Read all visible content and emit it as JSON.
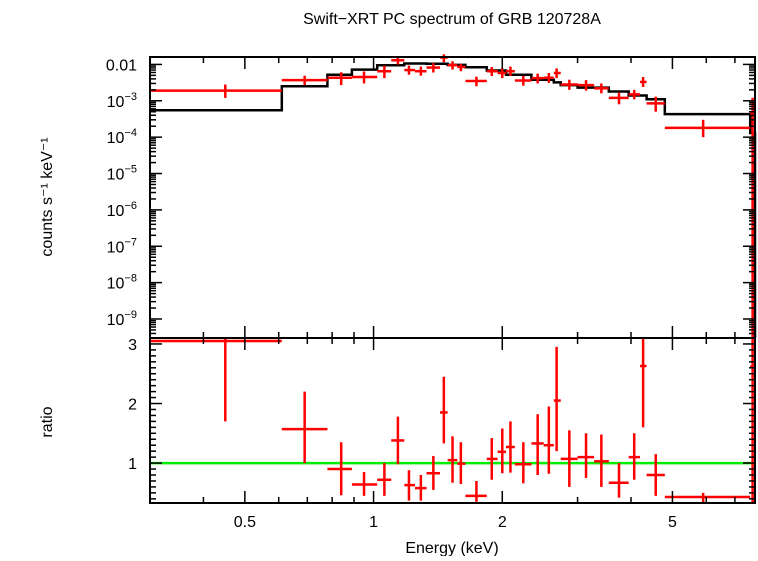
{
  "chart_data": [
    {
      "type": "scatter",
      "panel": "spectrum",
      "title": "Swift−XRT PC spectrum of GRB 120728A",
      "xlabel": "Energy (keV)",
      "ylabel": "counts s⁻¹ keV⁻¹",
      "x_scale": "log",
      "y_scale": "log",
      "xlim": [
        0.3,
        7.8
      ],
      "ylim": [
        3e-10,
        0.016
      ],
      "x_ticks": [
        {
          "value": 0.5,
          "label": "0.5"
        },
        {
          "value": 1,
          "label": "1"
        },
        {
          "value": 2,
          "label": "2"
        },
        {
          "value": 5,
          "label": "5"
        }
      ],
      "y_ticks": [
        {
          "value": 1e-09,
          "base": "10",
          "exp": "−9"
        },
        {
          "value": 1e-08,
          "base": "10",
          "exp": "−8"
        },
        {
          "value": 1e-07,
          "base": "10",
          "exp": "−7"
        },
        {
          "value": 1e-06,
          "base": "10",
          "exp": "−6"
        },
        {
          "value": 1e-05,
          "base": "10",
          "exp": "−5"
        },
        {
          "value": 0.0001,
          "base": "10",
          "exp": "−4"
        },
        {
          "value": 0.001,
          "base": "10",
          "exp": "−3"
        },
        {
          "value": 0.01,
          "base": "0.01",
          "exp": ""
        }
      ],
      "series": [
        {
          "color": "#ff0000",
          "points": [
            {
              "xlo": 0.3,
              "xhi": 0.61,
              "x": 0.45,
              "y": 0.0019,
              "ylo": 0.0012,
              "yhi": 0.0028
            },
            {
              "xlo": 0.61,
              "xhi": 0.78,
              "x": 0.69,
              "y": 0.0037,
              "ylo": 0.0027,
              "yhi": 0.0049
            },
            {
              "xlo": 0.78,
              "xhi": 0.89,
              "x": 0.84,
              "y": 0.0043,
              "ylo": 0.0027,
              "yhi": 0.0061
            },
            {
              "xlo": 0.89,
              "xhi": 1.02,
              "x": 0.95,
              "y": 0.0045,
              "ylo": 0.003,
              "yhi": 0.0064
            },
            {
              "xlo": 1.02,
              "xhi": 1.1,
              "x": 1.06,
              "y": 0.0065,
              "ylo": 0.0042,
              "yhi": 0.0093
            },
            {
              "xlo": 1.1,
              "xhi": 1.18,
              "x": 1.14,
              "y": 0.013,
              "ylo": 0.0099,
              "yhi": 0.016
            },
            {
              "xlo": 1.18,
              "xhi": 1.25,
              "x": 1.21,
              "y": 0.007,
              "ylo": 0.0052,
              "yhi": 0.0093
            },
            {
              "xlo": 1.25,
              "xhi": 1.33,
              "x": 1.29,
              "y": 0.0065,
              "ylo": 0.0049,
              "yhi": 0.0087
            },
            {
              "xlo": 1.33,
              "xhi": 1.43,
              "x": 1.38,
              "y": 0.0082,
              "ylo": 0.006,
              "yhi": 0.0108
            },
            {
              "xlo": 1.43,
              "xhi": 1.49,
              "x": 1.46,
              "y": 0.0155,
              "ylo": 0.0115,
              "yhi": 0.019
            },
            {
              "xlo": 1.49,
              "xhi": 1.57,
              "x": 1.53,
              "y": 0.0095,
              "ylo": 0.0072,
              "yhi": 0.0122
            },
            {
              "xlo": 1.57,
              "xhi": 1.64,
              "x": 1.6,
              "y": 0.0085,
              "ylo": 0.0065,
              "yhi": 0.0105
            },
            {
              "xlo": 1.64,
              "xhi": 1.84,
              "x": 1.74,
              "y": 0.0035,
              "ylo": 0.0025,
              "yhi": 0.0046
            },
            {
              "xlo": 1.84,
              "xhi": 1.95,
              "x": 1.89,
              "y": 0.0065,
              "ylo": 0.0048,
              "yhi": 0.0085
            },
            {
              "xlo": 1.95,
              "xhi": 2.04,
              "x": 2.0,
              "y": 0.0058,
              "ylo": 0.0042,
              "yhi": 0.0078
            },
            {
              "xlo": 2.04,
              "xhi": 2.14,
              "x": 2.09,
              "y": 0.0065,
              "ylo": 0.0048,
              "yhi": 0.0087
            },
            {
              "xlo": 2.14,
              "xhi": 2.34,
              "x": 2.24,
              "y": 0.0036,
              "ylo": 0.0026,
              "yhi": 0.0048
            },
            {
              "xlo": 2.34,
              "xhi": 2.5,
              "x": 2.42,
              "y": 0.0042,
              "ylo": 0.003,
              "yhi": 0.0056
            },
            {
              "xlo": 2.5,
              "xhi": 2.64,
              "x": 2.57,
              "y": 0.0043,
              "ylo": 0.0031,
              "yhi": 0.0058
            },
            {
              "xlo": 2.64,
              "xhi": 2.74,
              "x": 2.68,
              "y": 0.0058,
              "ylo": 0.0042,
              "yhi": 0.0078
            },
            {
              "xlo": 2.74,
              "xhi": 3.0,
              "x": 2.87,
              "y": 0.0028,
              "ylo": 0.002,
              "yhi": 0.0038
            },
            {
              "xlo": 3.0,
              "xhi": 3.28,
              "x": 3.14,
              "y": 0.0027,
              "ylo": 0.0019,
              "yhi": 0.0037
            },
            {
              "xlo": 3.28,
              "xhi": 3.55,
              "x": 3.41,
              "y": 0.0022,
              "ylo": 0.0016,
              "yhi": 0.003
            },
            {
              "xlo": 3.55,
              "xhi": 3.95,
              "x": 3.75,
              "y": 0.0012,
              "ylo": 0.0008,
              "yhi": 0.0017
            },
            {
              "xlo": 3.95,
              "xhi": 4.2,
              "x": 4.07,
              "y": 0.0015,
              "ylo": 0.0011,
              "yhi": 0.002
            },
            {
              "xlo": 4.2,
              "xhi": 4.35,
              "x": 4.27,
              "y": 0.0033,
              "ylo": 0.0024,
              "yhi": 0.0045
            },
            {
              "xlo": 4.35,
              "xhi": 4.8,
              "x": 4.57,
              "y": 0.00085,
              "ylo": 0.0005,
              "yhi": 0.0013
            },
            {
              "xlo": 4.8,
              "xhi": 7.6,
              "x": 5.9,
              "y": 0.00018,
              "ylo": 0.0001,
              "yhi": 0.0003
            },
            {
              "xlo": 7.6,
              "xhi": 7.8,
              "x": 7.7,
              "y": 0.00045,
              "ylo": 3e-10,
              "yhi": 0.0012
            }
          ]
        }
      ],
      "model": {
        "color": "#000000",
        "bins": [
          {
            "xlo": 0.3,
            "xhi": 0.61,
            "y": 0.00055
          },
          {
            "xlo": 0.61,
            "xhi": 0.78,
            "y": 0.0025
          },
          {
            "xlo": 0.78,
            "xhi": 0.89,
            "y": 0.0052
          },
          {
            "xlo": 0.89,
            "xhi": 1.02,
            "y": 0.0072
          },
          {
            "xlo": 1.02,
            "xhi": 1.18,
            "y": 0.0095
          },
          {
            "xlo": 1.18,
            "xhi": 1.33,
            "y": 0.0106
          },
          {
            "xlo": 1.33,
            "xhi": 1.49,
            "y": 0.0104
          },
          {
            "xlo": 1.49,
            "xhi": 1.64,
            "y": 0.0097
          },
          {
            "xlo": 1.64,
            "xhi": 1.84,
            "y": 0.0084
          },
          {
            "xlo": 1.84,
            "xhi": 2.04,
            "y": 0.0068
          },
          {
            "xlo": 2.04,
            "xhi": 2.34,
            "y": 0.0052
          },
          {
            "xlo": 2.34,
            "xhi": 2.64,
            "y": 0.0038
          },
          {
            "xlo": 2.64,
            "xhi": 2.74,
            "y": 0.0032
          },
          {
            "xlo": 2.74,
            "xhi": 3.0,
            "y": 0.0027
          },
          {
            "xlo": 3.0,
            "xhi": 3.55,
            "y": 0.0023
          },
          {
            "xlo": 3.55,
            "xhi": 3.95,
            "y": 0.0018
          },
          {
            "xlo": 3.95,
            "xhi": 4.35,
            "y": 0.0014
          },
          {
            "xlo": 4.35,
            "xhi": 4.8,
            "y": 0.0011
          },
          {
            "xlo": 4.8,
            "xhi": 7.6,
            "y": 0.00043
          },
          {
            "xlo": 7.6,
            "xhi": 7.8,
            "y": 0.00013
          }
        ]
      }
    },
    {
      "type": "scatter",
      "panel": "ratio",
      "xlabel": "Energy (keV)",
      "ylabel": "ratio",
      "x_scale": "log",
      "xlim": [
        0.3,
        7.8
      ],
      "ylim": [
        0.33,
        3.1
      ],
      "y_ticks": [
        {
          "value": 1,
          "label": "1"
        },
        {
          "value": 2,
          "label": "2"
        },
        {
          "value": 3,
          "label": "3"
        }
      ],
      "reference_line": {
        "y": 1,
        "color": "#00ee00"
      },
      "series": [
        {
          "color": "#ff0000",
          "points": [
            {
              "xlo": 0.3,
              "xhi": 0.61,
              "x": 0.45,
              "y": 3.05,
              "ylo": 1.7,
              "yhi": 3.1
            },
            {
              "xlo": 0.61,
              "xhi": 0.78,
              "x": 0.69,
              "y": 1.57,
              "ylo": 1.0,
              "yhi": 2.2
            },
            {
              "xlo": 0.78,
              "xhi": 0.89,
              "x": 0.84,
              "y": 0.9,
              "ylo": 0.46,
              "yhi": 1.35
            },
            {
              "xlo": 0.89,
              "xhi": 1.02,
              "x": 0.95,
              "y": 0.64,
              "ylo": 0.45,
              "yhi": 0.85
            },
            {
              "xlo": 1.02,
              "xhi": 1.1,
              "x": 1.06,
              "y": 0.72,
              "ylo": 0.45,
              "yhi": 1.0
            },
            {
              "xlo": 1.1,
              "xhi": 1.18,
              "x": 1.14,
              "y": 1.38,
              "ylo": 0.98,
              "yhi": 1.78
            },
            {
              "xlo": 1.18,
              "xhi": 1.25,
              "x": 1.21,
              "y": 0.63,
              "ylo": 0.37,
              "yhi": 0.88
            },
            {
              "xlo": 1.25,
              "xhi": 1.33,
              "x": 1.29,
              "y": 0.58,
              "ylo": 0.37,
              "yhi": 0.8
            },
            {
              "xlo": 1.33,
              "xhi": 1.43,
              "x": 1.38,
              "y": 0.83,
              "ylo": 0.55,
              "yhi": 1.12
            },
            {
              "xlo": 1.43,
              "xhi": 1.49,
              "x": 1.46,
              "y": 1.85,
              "ylo": 1.33,
              "yhi": 2.45
            },
            {
              "xlo": 1.49,
              "xhi": 1.57,
              "x": 1.53,
              "y": 1.05,
              "ylo": 0.67,
              "yhi": 1.45
            },
            {
              "xlo": 1.57,
              "xhi": 1.64,
              "x": 1.6,
              "y": 0.99,
              "ylo": 0.65,
              "yhi": 1.35
            },
            {
              "xlo": 1.64,
              "xhi": 1.84,
              "x": 1.74,
              "y": 0.45,
              "ylo": 0.35,
              "yhi": 0.7
            },
            {
              "xlo": 1.84,
              "xhi": 1.95,
              "x": 1.89,
              "y": 1.07,
              "ylo": 0.72,
              "yhi": 1.42
            },
            {
              "xlo": 1.95,
              "xhi": 2.04,
              "x": 2.0,
              "y": 1.19,
              "ylo": 0.83,
              "yhi": 1.58
            },
            {
              "xlo": 2.04,
              "xhi": 2.14,
              "x": 2.09,
              "y": 1.27,
              "ylo": 0.84,
              "yhi": 1.7
            },
            {
              "xlo": 2.14,
              "xhi": 2.34,
              "x": 2.24,
              "y": 0.98,
              "ylo": 0.66,
              "yhi": 1.35
            },
            {
              "xlo": 2.34,
              "xhi": 2.5,
              "x": 2.42,
              "y": 1.33,
              "ylo": 0.8,
              "yhi": 1.82
            },
            {
              "xlo": 2.5,
              "xhi": 2.64,
              "x": 2.57,
              "y": 1.3,
              "ylo": 0.82,
              "yhi": 1.95
            },
            {
              "xlo": 2.64,
              "xhi": 2.74,
              "x": 2.68,
              "y": 2.05,
              "ylo": 1.2,
              "yhi": 2.95
            },
            {
              "xlo": 2.74,
              "xhi": 3.0,
              "x": 2.87,
              "y": 1.07,
              "ylo": 0.6,
              "yhi": 1.55
            },
            {
              "xlo": 3.0,
              "xhi": 3.28,
              "x": 3.14,
              "y": 1.1,
              "ylo": 0.75,
              "yhi": 1.5
            },
            {
              "xlo": 3.28,
              "xhi": 3.55,
              "x": 3.41,
              "y": 1.03,
              "ylo": 0.6,
              "yhi": 1.48
            },
            {
              "xlo": 3.55,
              "xhi": 3.95,
              "x": 3.75,
              "y": 0.67,
              "ylo": 0.42,
              "yhi": 1.0
            },
            {
              "xlo": 3.95,
              "xhi": 4.2,
              "x": 4.07,
              "y": 1.1,
              "ylo": 0.72,
              "yhi": 1.5
            },
            {
              "xlo": 4.2,
              "xhi": 4.35,
              "x": 4.27,
              "y": 2.63,
              "ylo": 1.6,
              "yhi": 3.1
            },
            {
              "xlo": 4.35,
              "xhi": 4.8,
              "x": 4.57,
              "y": 0.8,
              "ylo": 0.45,
              "yhi": 1.15
            },
            {
              "xlo": 4.8,
              "xhi": 7.6,
              "x": 5.9,
              "y": 0.43,
              "ylo": 0.33,
              "yhi": 0.5
            },
            {
              "xlo": 7.6,
              "xhi": 7.8,
              "x": 7.7,
              "y": 2.62,
              "ylo": 0.33,
              "yhi": 3.1
            }
          ]
        }
      ]
    }
  ]
}
